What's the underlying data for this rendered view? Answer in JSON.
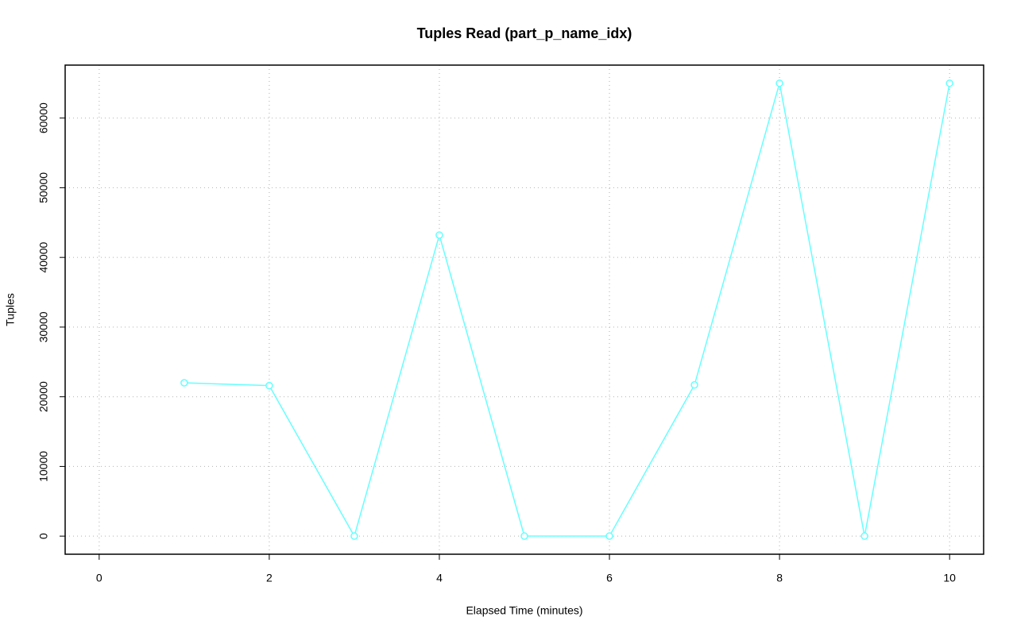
{
  "chart_data": {
    "type": "line",
    "title": "Tuples Read (part_p_name_idx)",
    "xlabel": "Elapsed Time (minutes)",
    "ylabel": "Tuples",
    "x": [
      1,
      2,
      3,
      4,
      5,
      6,
      7,
      8,
      9,
      10
    ],
    "series": [
      {
        "color": "#66ffff",
        "values": [
          22000,
          21600,
          0,
          43200,
          0,
          0,
          21700,
          65000,
          0,
          65000
        ]
      }
    ],
    "xlim": [
      -0.4,
      10.4
    ],
    "ylim": [
      -2600,
      67600
    ],
    "xticks": [
      0,
      2,
      4,
      6,
      8,
      10
    ],
    "yticks": [
      0,
      10000,
      20000,
      30000,
      40000,
      50000,
      60000
    ],
    "grid": true
  }
}
